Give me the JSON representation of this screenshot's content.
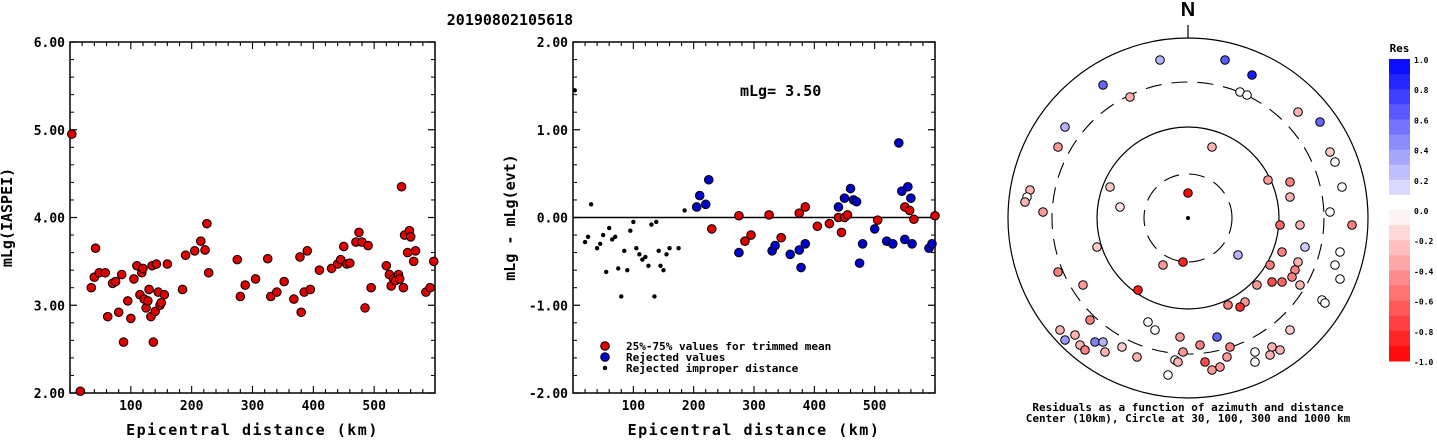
{
  "title": "20190802105618",
  "chart_data": [
    {
      "type": "scatter",
      "id": "left",
      "xlabel": "Epicentral distance (km)",
      "ylabel": "mLg(IASPEI)",
      "xlim": [
        0,
        600
      ],
      "ylim": [
        2.0,
        6.0
      ],
      "xticks": [
        100,
        200,
        300,
        400,
        500
      ],
      "yticks": [
        "2.00",
        "3.00",
        "4.00",
        "5.00",
        "6.00"
      ],
      "series": [
        {
          "color": "#dd0000",
          "points": [
            [
              3,
              4.95
            ],
            [
              17,
              2.02
            ],
            [
              35,
              3.2
            ],
            [
              40,
              3.32
            ],
            [
              42,
              3.65
            ],
            [
              48,
              3.37
            ],
            [
              58,
              3.37
            ],
            [
              62,
              2.87
            ],
            [
              70,
              3.25
            ],
            [
              75,
              3.27
            ],
            [
              80,
              2.92
            ],
            [
              85,
              3.35
            ],
            [
              88,
              2.58
            ],
            [
              95,
              3.05
            ],
            [
              100,
              2.85
            ],
            [
              105,
              3.3
            ],
            [
              110,
              3.45
            ],
            [
              115,
              3.12
            ],
            [
              118,
              3.37
            ],
            [
              120,
              3.42
            ],
            [
              122,
              3.07
            ],
            [
              125,
              2.97
            ],
            [
              128,
              3.05
            ],
            [
              130,
              3.18
            ],
            [
              133,
              2.87
            ],
            [
              135,
              3.45
            ],
            [
              137,
              2.58
            ],
            [
              140,
              2.93
            ],
            [
              142,
              3.47
            ],
            [
              145,
              3.15
            ],
            [
              148,
              3.0
            ],
            [
              150,
              3.03
            ],
            [
              155,
              3.12
            ],
            [
              160,
              3.47
            ],
            [
              185,
              3.18
            ],
            [
              190,
              3.57
            ],
            [
              205,
              3.62
            ],
            [
              215,
              3.73
            ],
            [
              222,
              3.63
            ],
            [
              225,
              3.93
            ],
            [
              228,
              3.37
            ],
            [
              275,
              3.52
            ],
            [
              280,
              3.1
            ],
            [
              288,
              3.23
            ],
            [
              305,
              3.3
            ],
            [
              325,
              3.53
            ],
            [
              330,
              3.1
            ],
            [
              340,
              3.15
            ],
            [
              352,
              3.27
            ],
            [
              368,
              3.07
            ],
            [
              378,
              3.55
            ],
            [
              380,
              2.92
            ],
            [
              385,
              3.15
            ],
            [
              390,
              3.62
            ],
            [
              395,
              3.18
            ],
            [
              410,
              3.4
            ],
            [
              430,
              3.42
            ],
            [
              440,
              3.47
            ],
            [
              445,
              3.52
            ],
            [
              450,
              3.67
            ],
            [
              455,
              3.47
            ],
            [
              460,
              3.48
            ],
            [
              470,
              3.72
            ],
            [
              475,
              3.83
            ],
            [
              480,
              3.72
            ],
            [
              485,
              2.97
            ],
            [
              490,
              3.68
            ],
            [
              495,
              3.2
            ],
            [
              520,
              3.45
            ],
            [
              525,
              3.35
            ],
            [
              528,
              3.22
            ],
            [
              532,
              3.3
            ],
            [
              535,
              3.28
            ],
            [
              540,
              3.35
            ],
            [
              542,
              3.3
            ],
            [
              545,
              4.35
            ],
            [
              548,
              3.2
            ],
            [
              550,
              3.8
            ],
            [
              555,
              3.6
            ],
            [
              558,
              3.85
            ],
            [
              560,
              3.78
            ],
            [
              565,
              3.5
            ],
            [
              568,
              3.62
            ],
            [
              585,
              3.15
            ],
            [
              592,
              3.2
            ],
            [
              598,
              3.5
            ]
          ]
        }
      ]
    },
    {
      "type": "scatter",
      "id": "middle",
      "xlabel": "Epicentral distance (km)",
      "ylabel": "mLg - mLg(evt)",
      "xlim": [
        0,
        600
      ],
      "ylim": [
        -2.0,
        2.0
      ],
      "xticks": [
        100,
        200,
        300,
        400,
        500
      ],
      "yticks": [
        "-2.00",
        "-1.00",
        "0.00",
        "1.00",
        "2.00"
      ],
      "annotation": "mLg= 3.50",
      "legend": {
        "position": "bottom-left",
        "entries": [
          {
            "label": "25%-75% values for trimmed mean",
            "color": "#dd0000",
            "size": "large"
          },
          {
            "label": "Rejected values",
            "color": "#0000cc",
            "size": "large"
          },
          {
            "label": "Rejected improper distance",
            "color": "#000000",
            "size": "small"
          }
        ]
      },
      "series": [
        {
          "name": "25%-75% values for trimmed mean",
          "color": "#dd0000",
          "size": "large",
          "points": [
            [
              230,
              -0.13
            ],
            [
              275,
              0.02
            ],
            [
              285,
              -0.27
            ],
            [
              295,
              -0.2
            ],
            [
              325,
              0.03
            ],
            [
              345,
              -0.23
            ],
            [
              375,
              0.05
            ],
            [
              385,
              0.12
            ],
            [
              405,
              -0.1
            ],
            [
              425,
              -0.07
            ],
            [
              440,
              0.0
            ],
            [
              445,
              -0.17
            ],
            [
              450,
              0.0
            ],
            [
              455,
              0.03
            ],
            [
              505,
              -0.03
            ],
            [
              550,
              0.12
            ],
            [
              558,
              0.08
            ],
            [
              565,
              -0.02
            ],
            [
              600,
              0.02
            ]
          ]
        },
        {
          "name": "Rejected values",
          "color": "#0000cc",
          "size": "large",
          "points": [
            [
              205,
              0.12
            ],
            [
              210,
              0.25
            ],
            [
              220,
              0.15
            ],
            [
              225,
              0.43
            ],
            [
              275,
              -0.4
            ],
            [
              330,
              -0.38
            ],
            [
              335,
              -0.32
            ],
            [
              360,
              -0.42
            ],
            [
              375,
              -0.37
            ],
            [
              378,
              -0.57
            ],
            [
              385,
              -0.3
            ],
            [
              440,
              0.12
            ],
            [
              450,
              0.22
            ],
            [
              460,
              0.33
            ],
            [
              465,
              0.2
            ],
            [
              470,
              0.18
            ],
            [
              475,
              -0.52
            ],
            [
              480,
              -0.3
            ],
            [
              500,
              -0.13
            ],
            [
              520,
              -0.27
            ],
            [
              530,
              -0.3
            ],
            [
              540,
              0.85
            ],
            [
              545,
              0.3
            ],
            [
              550,
              -0.25
            ],
            [
              555,
              0.35
            ],
            [
              560,
              0.22
            ],
            [
              562,
              -0.3
            ],
            [
              590,
              -0.35
            ],
            [
              595,
              -0.3
            ]
          ]
        },
        {
          "name": "Rejected improper distance",
          "color": "#000000",
          "size": "small",
          "points": [
            [
              3,
              1.45
            ],
            [
              20,
              -0.28
            ],
            [
              25,
              -0.22
            ],
            [
              30,
              0.15
            ],
            [
              40,
              -0.35
            ],
            [
              45,
              -0.3
            ],
            [
              50,
              -0.2
            ],
            [
              55,
              -0.62
            ],
            [
              60,
              -0.12
            ],
            [
              65,
              -0.25
            ],
            [
              70,
              -0.22
            ],
            [
              75,
              -0.58
            ],
            [
              80,
              -0.9
            ],
            [
              85,
              -0.38
            ],
            [
              90,
              -0.6
            ],
            [
              95,
              -0.15
            ],
            [
              100,
              -0.05
            ],
            [
              105,
              -0.35
            ],
            [
              110,
              -0.42
            ],
            [
              115,
              -0.48
            ],
            [
              120,
              -0.45
            ],
            [
              125,
              -0.55
            ],
            [
              130,
              -0.08
            ],
            [
              135,
              -0.9
            ],
            [
              138,
              -0.05
            ],
            [
              142,
              -0.38
            ],
            [
              145,
              -0.55
            ],
            [
              150,
              -0.6
            ],
            [
              155,
              -0.42
            ],
            [
              160,
              -0.35
            ],
            [
              175,
              -0.35
            ],
            [
              185,
              0.08
            ]
          ]
        }
      ]
    },
    {
      "type": "polar",
      "id": "polar",
      "north_label": "N",
      "caption": [
        "Residuals as a function of azimuth and distance",
        "Center (10km), Circle at 30, 100, 300 and 1000 km"
      ],
      "colorbar": {
        "label": "Res",
        "ticks": [
          "1.0",
          "0.8",
          "0.6",
          "0.4",
          "0.2",
          "0.0",
          "-0.2",
          "-0.4",
          "-0.6",
          "-0.8",
          "-1.0"
        ]
      },
      "points": [
        [
          1103,
          85,
          0.6
        ],
        [
          1160,
          60,
          0.3
        ],
        [
          1225,
          60,
          0.65
        ],
        [
          1252,
          75,
          0.9
        ],
        [
          1130,
          97,
          -0.3
        ],
        [
          1240,
          92,
          0.0
        ],
        [
          1247,
          95,
          0.0
        ],
        [
          1298,
          112,
          -0.3
        ],
        [
          1320,
          122,
          0.6
        ],
        [
          1065,
          127,
          0.3
        ],
        [
          1058,
          147,
          -0.4
        ],
        [
          1212,
          147,
          -0.3
        ],
        [
          1330,
          152,
          -0.2
        ],
        [
          1335,
          162,
          0.0
        ],
        [
          1110,
          187,
          -0.2
        ],
        [
          1120,
          207,
          -0.1
        ],
        [
          1268,
          180,
          -0.4
        ],
        [
          1290,
          182,
          -0.5
        ],
        [
          1290,
          197,
          -0.3
        ],
        [
          1342,
          187,
          0.0
        ],
        [
          1030,
          190,
          -0.3
        ],
        [
          1027,
          197,
          0.0
        ],
        [
          1025,
          202,
          -0.3
        ],
        [
          1043,
          212,
          -0.4
        ],
        [
          1330,
          212,
          0.0
        ],
        [
          1280,
          225,
          -0.6
        ],
        [
          1300,
          225,
          -0.3
        ],
        [
          1352,
          225,
          -0.5
        ],
        [
          1097,
          247,
          -0.2
        ],
        [
          1238,
          255,
          0.3
        ],
        [
          1282,
          252,
          -0.5
        ],
        [
          1305,
          247,
          0.2
        ],
        [
          1340,
          252,
          0.0
        ],
        [
          1335,
          265,
          0.0
        ],
        [
          1163,
          265,
          -0.4
        ],
        [
          1270,
          265,
          -0.5
        ],
        [
          1298,
          262,
          -0.3
        ],
        [
          1295,
          270,
          -0.5
        ],
        [
          1058,
          272,
          -0.5
        ],
        [
          1292,
          277,
          -0.5
        ],
        [
          1340,
          279,
          0.0
        ],
        [
          1272,
          282,
          -0.7
        ],
        [
          1282,
          282,
          -0.6
        ],
        [
          1257,
          285,
          -0.4
        ],
        [
          1300,
          285,
          -0.3
        ],
        [
          1083,
          285,
          -0.4
        ],
        [
          1138,
          290,
          -0.9
        ],
        [
          1322,
          300,
          0.0
        ],
        [
          1245,
          302,
          -0.4
        ],
        [
          1228,
          305,
          -0.5
        ],
        [
          1240,
          307,
          -0.8
        ],
        [
          1325,
          303,
          0.0
        ],
        [
          1148,
          322,
          0.0
        ],
        [
          1090,
          320,
          -0.5
        ],
        [
          1155,
          330,
          0.0
        ],
        [
          1290,
          330,
          -0.2
        ],
        [
          1065,
          340,
          0.4
        ],
        [
          1060,
          330,
          -0.3
        ],
        [
          1075,
          335,
          -0.3
        ],
        [
          1080,
          345,
          -0.3
        ],
        [
          1085,
          350,
          -0.5
        ],
        [
          1095,
          342,
          0.5
        ],
        [
          1103,
          342,
          0.3
        ],
        [
          1105,
          352,
          -0.3
        ],
        [
          1122,
          347,
          -0.2
        ],
        [
          1137,
          357,
          -0.3
        ],
        [
          1180,
          337,
          -0.4
        ],
        [
          1183,
          352,
          -0.4
        ],
        [
          1200,
          345,
          -0.5
        ],
        [
          1217,
          337,
          0.6
        ],
        [
          1230,
          347,
          -0.5
        ],
        [
          1227,
          357,
          -0.4
        ],
        [
          1255,
          352,
          0.0
        ],
        [
          1272,
          347,
          -0.3
        ],
        [
          1280,
          350,
          -0.3
        ],
        [
          1175,
          360,
          0.0
        ],
        [
          1178,
          362,
          -0.3
        ],
        [
          1205,
          362,
          -0.7
        ],
        [
          1220,
          367,
          -0.4
        ],
        [
          1255,
          362,
          0.0
        ],
        [
          1270,
          355,
          -0.3
        ],
        [
          1168,
          375,
          0.0
        ],
        [
          1212,
          370,
          -0.4
        ],
        [
          1183,
          262,
          -0.85
        ],
        [
          1188,
          193,
          -1.0
        ]
      ]
    }
  ]
}
